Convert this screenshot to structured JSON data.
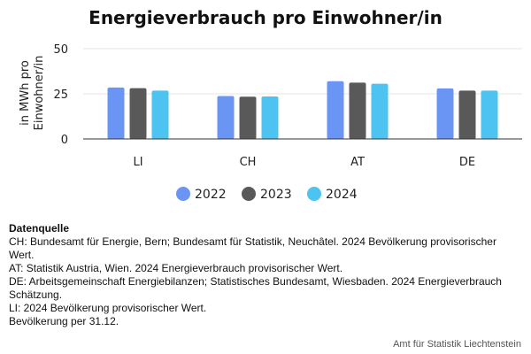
{
  "chart_data": {
    "type": "bar",
    "title": "Energieverbrauch pro Einwohner/in",
    "ylabel_lines": [
      "in MWh pro",
      "Einwohner/in"
    ],
    "xlabel": "",
    "categories": [
      "LI",
      "CH",
      "AT",
      "DE"
    ],
    "series": [
      {
        "name": "2022",
        "values": [
          28.5,
          23.8,
          32.0,
          28.0
        ],
        "color": "#6b95f5"
      },
      {
        "name": "2023",
        "values": [
          28.1,
          23.4,
          31.2,
          26.8
        ],
        "color": "#595959"
      },
      {
        "name": "2024",
        "values": [
          26.8,
          23.5,
          30.6,
          26.8
        ],
        "color": "#4cc3f0"
      }
    ],
    "ylim": [
      0,
      50
    ],
    "yticks": [
      0,
      25,
      50
    ],
    "grid": true,
    "legend_position": "bottom"
  },
  "source": {
    "title": "Datenquelle",
    "lines": [
      "CH: Bundesamt für Energie, Bern; Bundesamt für Statistik, Neuchâtel. 2024 Bevölkerung provisorischer Wert.",
      "AT: Statistik Austria, Wien. 2024 Energieverbrauch provisorischer Wert.",
      "DE: Arbeitsgemeinschaft Energiebilanzen; Statistisches Bundesamt, Wiesbaden. 2024 Energieverbrauch Schätzung.",
      "LI: 2024 Bevölkerung provisorischer Wert.",
      "Bevölkerung per 31.12."
    ]
  },
  "credit": "Amt für Statistik Liechtenstein"
}
